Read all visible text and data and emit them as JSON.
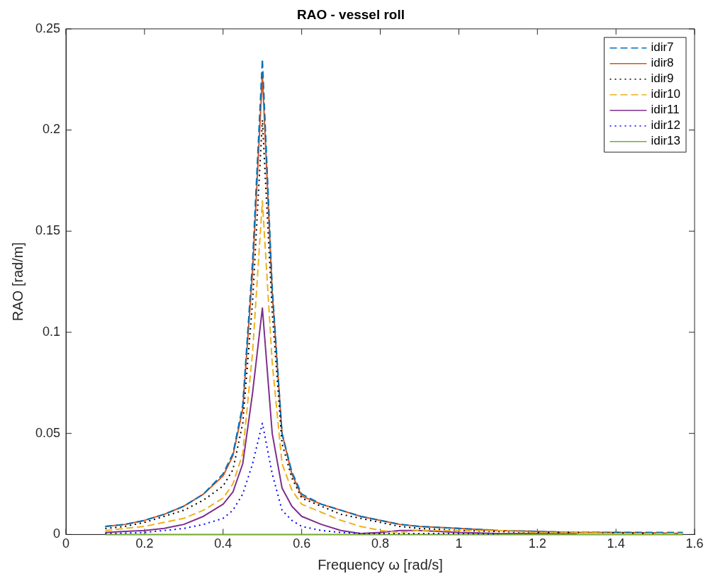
{
  "chart_data": {
    "type": "line",
    "title": "RAO - vessel roll",
    "xlabel": "Frequency ω [rad/s]",
    "ylabel": "RAO [rad/m]",
    "x": [
      0.1,
      0.15,
      0.2,
      0.25,
      0.3,
      0.35,
      0.4,
      0.425,
      0.45,
      0.475,
      0.5,
      0.525,
      0.55,
      0.575,
      0.6,
      0.65,
      0.7,
      0.75,
      0.8,
      0.85,
      0.9,
      1.0,
      1.1,
      1.2,
      1.3,
      1.4,
      1.5,
      1.57
    ],
    "series": [
      {
        "name": "idir7",
        "color": "#0072bd",
        "line_style": "dashed",
        "values": [
          0.004,
          0.005,
          0.007,
          0.01,
          0.014,
          0.02,
          0.03,
          0.04,
          0.064,
          0.135,
          0.235,
          0.122,
          0.05,
          0.031,
          0.02,
          0.015,
          0.012,
          0.009,
          0.007,
          0.005,
          0.004,
          0.003,
          0.002,
          0.0015,
          0.001,
          0.001,
          0.001,
          0.001
        ]
      },
      {
        "name": "idir8",
        "color": "#d95319",
        "line_style": "solid",
        "values": [
          0.004,
          0.005,
          0.007,
          0.01,
          0.014,
          0.02,
          0.029,
          0.039,
          0.062,
          0.13,
          0.227,
          0.12,
          0.05,
          0.03,
          0.019,
          0.015,
          0.012,
          0.009,
          0.007,
          0.005,
          0.004,
          0.003,
          0.002,
          0.0015,
          0.001,
          0.001,
          0.0008,
          0.0005
        ]
      },
      {
        "name": "idir9",
        "color": "#000000",
        "line_style": "dotted",
        "values": [
          0.003,
          0.004,
          0.006,
          0.009,
          0.012,
          0.017,
          0.024,
          0.032,
          0.055,
          0.115,
          0.205,
          0.11,
          0.045,
          0.028,
          0.018,
          0.014,
          0.01,
          0.008,
          0.006,
          0.004,
          0.003,
          0.002,
          0.0015,
          0.001,
          0.001,
          0.0008,
          0.0005,
          0.0005
        ]
      },
      {
        "name": "idir10",
        "color": "#edb120",
        "line_style": "dashed",
        "values": [
          0.002,
          0.003,
          0.004,
          0.006,
          0.008,
          0.012,
          0.018,
          0.025,
          0.04,
          0.09,
          0.165,
          0.085,
          0.035,
          0.022,
          0.015,
          0.011,
          0.007,
          0.004,
          0.002,
          0.001,
          0.002,
          0.002,
          0.002,
          0.001,
          0.001,
          0.0005,
          0.0005,
          0.0005
        ]
      },
      {
        "name": "idir11",
        "color": "#7e2f8e",
        "line_style": "solid",
        "values": [
          0.001,
          0.0015,
          0.002,
          0.003,
          0.005,
          0.009,
          0.015,
          0.021,
          0.035,
          0.07,
          0.112,
          0.05,
          0.023,
          0.014,
          0.009,
          0.005,
          0.002,
          0.0005,
          0.001,
          0.002,
          0.002,
          0.001,
          0.0005,
          0.0005,
          0.0003,
          null,
          null,
          null
        ]
      },
      {
        "name": "idir12",
        "color": "#0000ff",
        "line_style": "dotted",
        "values": [
          0.0005,
          0.0007,
          0.001,
          0.002,
          0.003,
          0.005,
          0.008,
          0.012,
          0.02,
          0.035,
          0.055,
          0.03,
          0.012,
          0.007,
          0.004,
          0.002,
          0.001,
          0.0005,
          0.0005,
          0.0005,
          0.0005,
          0.0005,
          0.0003,
          null,
          null,
          null,
          null,
          null
        ]
      },
      {
        "name": "idir13",
        "color": "#77ac30",
        "line_style": "solid",
        "values": [
          0,
          0,
          0,
          0,
          0,
          0,
          0,
          0,
          0,
          0,
          0,
          0,
          0,
          0,
          0,
          0,
          0,
          0,
          0,
          0,
          0,
          0,
          0,
          0,
          0,
          0,
          0,
          0
        ]
      }
    ],
    "xlim": [
      0,
      1.6
    ],
    "xticks": [
      0,
      0.2,
      0.4,
      0.6,
      0.8,
      1,
      1.2,
      1.4,
      1.6
    ],
    "ylim": [
      0,
      0.25
    ],
    "yticks": [
      0,
      0.05,
      0.1,
      0.15,
      0.2,
      0.25
    ],
    "grid": false,
    "legend": "top right",
    "marker": "none"
  }
}
